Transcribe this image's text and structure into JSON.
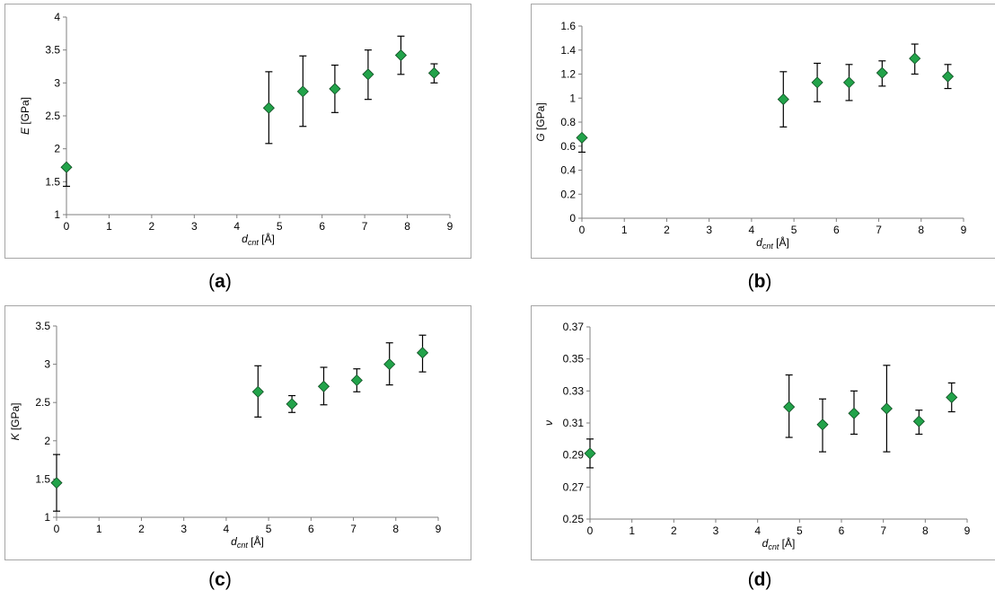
{
  "colors": {
    "marker": "#22a34a",
    "marker_edge": "#0f4d22",
    "axis": "#7f7f7f",
    "frame": "#a6a6a6"
  },
  "chart_data": [
    {
      "id": "a",
      "caption": "a",
      "type": "scatter",
      "title": "",
      "xlabel": {
        "main": "d",
        "sub": "cnt",
        "unit": " [Å]"
      },
      "ylabel": {
        "main": "E",
        "unit": " [GPa]"
      },
      "xlim": [
        0,
        9
      ],
      "ylim": [
        1,
        4
      ],
      "xticks": [
        "0",
        "1",
        "2",
        "3",
        "4",
        "5",
        "6",
        "7",
        "8",
        "9"
      ],
      "yticks": [
        "1",
        "1.5",
        "2",
        "2.5",
        "3",
        "3.5",
        "4"
      ],
      "points": [
        {
          "x": 0.0,
          "y": 1.72,
          "lo": 1.43,
          "hi": 1.72
        },
        {
          "x": 4.75,
          "y": 2.62,
          "lo": 2.08,
          "hi": 3.17
        },
        {
          "x": 5.55,
          "y": 2.87,
          "lo": 2.34,
          "hi": 3.41
        },
        {
          "x": 6.3,
          "y": 2.91,
          "lo": 2.55,
          "hi": 3.27
        },
        {
          "x": 7.08,
          "y": 3.13,
          "lo": 2.75,
          "hi": 3.5
        },
        {
          "x": 7.85,
          "y": 3.42,
          "lo": 3.13,
          "hi": 3.71
        },
        {
          "x": 8.63,
          "y": 3.15,
          "lo": 3.0,
          "hi": 3.29
        }
      ]
    },
    {
      "id": "b",
      "caption": "b",
      "type": "scatter",
      "title": "",
      "xlabel": {
        "main": "d",
        "sub": "cnt",
        "unit": " [Å]"
      },
      "ylabel": {
        "main": "G",
        "unit": " [GPa]"
      },
      "xlim": [
        0,
        9
      ],
      "ylim": [
        0,
        1.6
      ],
      "xticks": [
        "0",
        "1",
        "2",
        "3",
        "4",
        "5",
        "6",
        "7",
        "8",
        "9"
      ],
      "yticks": [
        "0",
        "0.2",
        "0.4",
        "0.6",
        "0.8",
        "1",
        "1.2",
        "1.4",
        "1.6"
      ],
      "points": [
        {
          "x": 0.0,
          "y": 0.67,
          "lo": 0.55,
          "hi": 0.67
        },
        {
          "x": 4.75,
          "y": 0.99,
          "lo": 0.76,
          "hi": 1.22
        },
        {
          "x": 5.55,
          "y": 1.13,
          "lo": 0.97,
          "hi": 1.29
        },
        {
          "x": 6.3,
          "y": 1.13,
          "lo": 0.98,
          "hi": 1.28
        },
        {
          "x": 7.08,
          "y": 1.21,
          "lo": 1.1,
          "hi": 1.31
        },
        {
          "x": 7.85,
          "y": 1.33,
          "lo": 1.2,
          "hi": 1.45
        },
        {
          "x": 8.63,
          "y": 1.18,
          "lo": 1.08,
          "hi": 1.28
        }
      ]
    },
    {
      "id": "c",
      "caption": "c",
      "type": "scatter",
      "title": "",
      "xlabel": {
        "main": "d",
        "sub": "cnt",
        "unit": " [Å]"
      },
      "ylabel": {
        "main": "K",
        "unit": " [GPa]"
      },
      "xlim": [
        0,
        9
      ],
      "ylim": [
        1,
        3.5
      ],
      "xticks": [
        "0",
        "1",
        "2",
        "3",
        "4",
        "5",
        "6",
        "7",
        "8",
        "9"
      ],
      "yticks": [
        "1",
        "1.5",
        "2",
        "2.5",
        "3",
        "3.5"
      ],
      "points": [
        {
          "x": 0.0,
          "y": 1.45,
          "lo": 1.08,
          "hi": 1.82
        },
        {
          "x": 4.75,
          "y": 2.64,
          "lo": 2.31,
          "hi": 2.98
        },
        {
          "x": 5.55,
          "y": 2.48,
          "lo": 2.37,
          "hi": 2.59
        },
        {
          "x": 6.3,
          "y": 2.71,
          "lo": 2.47,
          "hi": 2.96
        },
        {
          "x": 7.08,
          "y": 2.79,
          "lo": 2.64,
          "hi": 2.94
        },
        {
          "x": 7.85,
          "y": 3.0,
          "lo": 2.73,
          "hi": 3.28
        },
        {
          "x": 8.63,
          "y": 3.15,
          "lo": 2.9,
          "hi": 3.38
        }
      ]
    },
    {
      "id": "d",
      "caption": "d",
      "type": "scatter",
      "title": "",
      "xlabel": {
        "main": "d",
        "sub": "cnt",
        "unit": " [Å]"
      },
      "ylabel": {
        "main": "ν",
        "unit": ""
      },
      "xlim": [
        0,
        9
      ],
      "ylim": [
        0.25,
        0.37
      ],
      "xticks": [
        "0",
        "1",
        "2",
        "3",
        "4",
        "5",
        "6",
        "7",
        "8",
        "9"
      ],
      "yticks": [
        "0.25",
        "0.27",
        "0.29",
        "0.31",
        "0.33",
        "0.35",
        "0.37"
      ],
      "points": [
        {
          "x": 0.0,
          "y": 0.291,
          "lo": 0.282,
          "hi": 0.3
        },
        {
          "x": 4.75,
          "y": 0.32,
          "lo": 0.301,
          "hi": 0.34
        },
        {
          "x": 5.55,
          "y": 0.309,
          "lo": 0.292,
          "hi": 0.325
        },
        {
          "x": 6.3,
          "y": 0.316,
          "lo": 0.303,
          "hi": 0.33
        },
        {
          "x": 7.08,
          "y": 0.319,
          "lo": 0.292,
          "hi": 0.346
        },
        {
          "x": 7.85,
          "y": 0.311,
          "lo": 0.303,
          "hi": 0.318
        },
        {
          "x": 8.63,
          "y": 0.326,
          "lo": 0.317,
          "hi": 0.335
        }
      ]
    }
  ]
}
